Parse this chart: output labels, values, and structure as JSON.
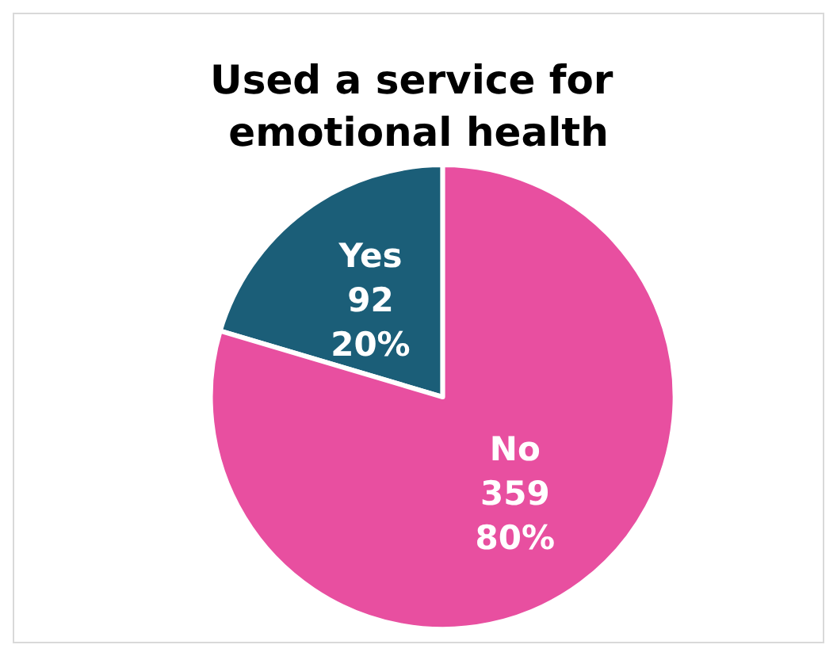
{
  "chart_data": {
    "type": "pie",
    "title": "Used a service for emotional health",
    "categories": [
      "Yes",
      "No"
    ],
    "values": [
      92,
      359
    ],
    "colors": [
      "#1b5e78",
      "#e84fa0"
    ],
    "value_labels": [
      "92\n20%",
      "359\n80%"
    ]
  }
}
